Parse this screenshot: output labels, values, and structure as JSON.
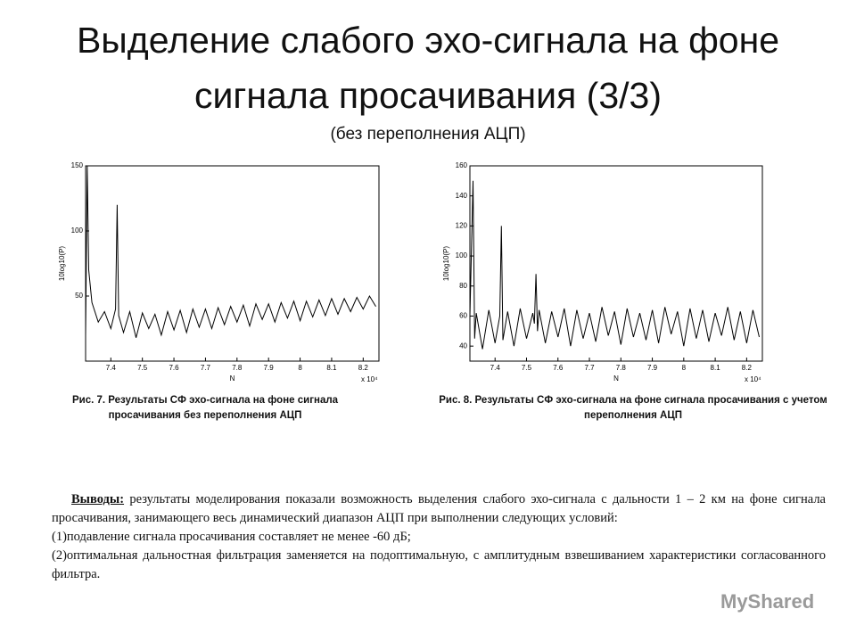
{
  "title": "Выделение слабого эхо-сигнала на фоне сигнала просачивания (3/3)",
  "subtitle": "(без переполнения АЦП)",
  "chart_data": [
    {
      "type": "line",
      "caption": "Рис. 7. Результаты СФ эхо-сигнала на фоне сигнала просачивания без переполнения АЦП",
      "x_label": "N",
      "y_label": "10log10(P)",
      "x_multiplier": "x 10⁴",
      "color": "#000000",
      "x": [
        7.32,
        7.325,
        7.33,
        7.34,
        7.36,
        7.38,
        7.4,
        7.415,
        7.42,
        7.425,
        7.44,
        7.46,
        7.48,
        7.5,
        7.52,
        7.54,
        7.56,
        7.58,
        7.6,
        7.62,
        7.64,
        7.66,
        7.68,
        7.7,
        7.72,
        7.74,
        7.76,
        7.78,
        7.8,
        7.82,
        7.84,
        7.86,
        7.88,
        7.9,
        7.92,
        7.94,
        7.96,
        7.98,
        8.0,
        8.02,
        8.04,
        8.06,
        8.08,
        8.1,
        8.12,
        8.14,
        8.16,
        8.18,
        8.2,
        8.22,
        8.24
      ],
      "values": [
        20,
        150,
        70,
        45,
        30,
        38,
        25,
        40,
        120,
        35,
        22,
        38,
        18,
        37,
        25,
        36,
        20,
        38,
        24,
        39,
        22,
        40,
        26,
        40,
        25,
        41,
        28,
        42,
        30,
        43,
        27,
        44,
        32,
        44,
        30,
        45,
        33,
        46,
        31,
        46,
        34,
        47,
        35,
        48,
        36,
        48,
        38,
        49,
        40,
        50,
        42
      ],
      "xlim": [
        7.32,
        8.25
      ],
      "ylim": [
        0,
        150
      ],
      "xticks": [
        7.4,
        7.5,
        7.6,
        7.7,
        7.8,
        7.9,
        8,
        8.1,
        8.2
      ],
      "yticks": [
        50,
        100,
        150
      ]
    },
    {
      "type": "line",
      "caption": "Рис. 8. Результаты СФ эхо-сигнала на фоне сигнала просачивания с учетом переполнения АЦП",
      "x_label": "N",
      "y_label": "10log10(P)",
      "x_multiplier": "x 10⁴",
      "color": "#000000",
      "x": [
        7.32,
        7.33,
        7.335,
        7.34,
        7.36,
        7.38,
        7.4,
        7.415,
        7.42,
        7.425,
        7.44,
        7.46,
        7.48,
        7.5,
        7.52,
        7.525,
        7.53,
        7.535,
        7.54,
        7.56,
        7.58,
        7.6,
        7.62,
        7.64,
        7.66,
        7.68,
        7.7,
        7.72,
        7.74,
        7.76,
        7.78,
        7.8,
        7.82,
        7.84,
        7.86,
        7.88,
        7.9,
        7.92,
        7.94,
        7.96,
        7.98,
        8.0,
        8.02,
        8.04,
        8.06,
        8.08,
        8.1,
        8.12,
        8.14,
        8.16,
        8.18,
        8.2,
        8.22,
        8.24
      ],
      "values": [
        60,
        150,
        45,
        62,
        38,
        64,
        42,
        60,
        120,
        44,
        63,
        40,
        65,
        45,
        62,
        55,
        88,
        50,
        64,
        42,
        63,
        46,
        65,
        40,
        64,
        45,
        62,
        43,
        66,
        47,
        63,
        41,
        65,
        46,
        62,
        44,
        64,
        42,
        66,
        48,
        63,
        40,
        65,
        45,
        64,
        43,
        62,
        47,
        66,
        44,
        63,
        42,
        64,
        46
      ],
      "xlim": [
        7.32,
        8.25
      ],
      "ylim": [
        30,
        160
      ],
      "xticks": [
        7.4,
        7.5,
        7.6,
        7.7,
        7.8,
        7.9,
        8,
        8.1,
        8.2
      ],
      "yticks": [
        40,
        60,
        80,
        100,
        120,
        140,
        160
      ]
    }
  ],
  "conclusions": {
    "lead": "Выводы:",
    "text": "результаты моделирования показали возможность выделения слабого эхо-сигнала с дальности 1 – 2 км на фоне сигнала просачивания, занимающего весь динамический диапазон АЦП при выполнении следующих условий:",
    "items": [
      "(1)подавление сигнала просачивания  составляет не менее -60 дБ;",
      "(2)оптимальная дальностная фильтрация заменяется на подоптимальную, с амплитудным взвешиванием характеристики согласованного фильтра."
    ]
  },
  "watermark": "MyShared"
}
